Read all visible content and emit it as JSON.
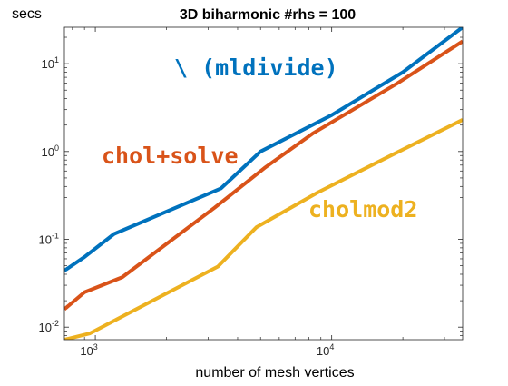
{
  "chart_data": {
    "type": "line",
    "title": "3D biharmonic #rhs = 100",
    "ylabel": "secs",
    "xlabel": "number of mesh vertices",
    "x_scale": "log",
    "y_scale": "log",
    "xlim": [
      740,
      35800
    ],
    "ylim": [
      0.0072,
      26
    ],
    "x_ticks": [
      {
        "value": 1000,
        "base": "10",
        "exp": "3"
      },
      {
        "value": 10000,
        "base": "10",
        "exp": "4"
      }
    ],
    "y_ticks": [
      {
        "value": 0.01,
        "base": "10",
        "exp": "-2"
      },
      {
        "value": 0.1,
        "base": "10",
        "exp": "-1"
      },
      {
        "value": 1,
        "base": "10",
        "exp": "0"
      },
      {
        "value": 10,
        "base": "10",
        "exp": "1"
      }
    ],
    "grid": false,
    "series": [
      {
        "name": "\\ (mldivide)",
        "color": "#0072BD",
        "x": [
          740,
          900,
          1200,
          3400,
          5000,
          10000,
          20000,
          35800
        ],
        "y": [
          0.044,
          0.063,
          0.115,
          0.38,
          1.0,
          2.6,
          8.0,
          26.0
        ]
      },
      {
        "name": "chol+solve",
        "color": "#D95319",
        "x": [
          740,
          900,
          1300,
          3200,
          5200,
          8300,
          19000,
          35800
        ],
        "y": [
          0.016,
          0.025,
          0.037,
          0.23,
          0.65,
          1.6,
          6.0,
          18.0
        ]
      },
      {
        "name": "cholmod2",
        "color": "#EDB120",
        "x": [
          740,
          950,
          3300,
          4800,
          8700,
          17500,
          35800
        ],
        "y": [
          0.0072,
          0.0085,
          0.049,
          0.137,
          0.34,
          0.88,
          2.3
        ]
      }
    ],
    "annotations": [
      {
        "series": 0,
        "text": "\\ (mldivide)"
      },
      {
        "series": 1,
        "text": "chol+solve"
      },
      {
        "series": 2,
        "text": "cholmod2"
      }
    ]
  }
}
